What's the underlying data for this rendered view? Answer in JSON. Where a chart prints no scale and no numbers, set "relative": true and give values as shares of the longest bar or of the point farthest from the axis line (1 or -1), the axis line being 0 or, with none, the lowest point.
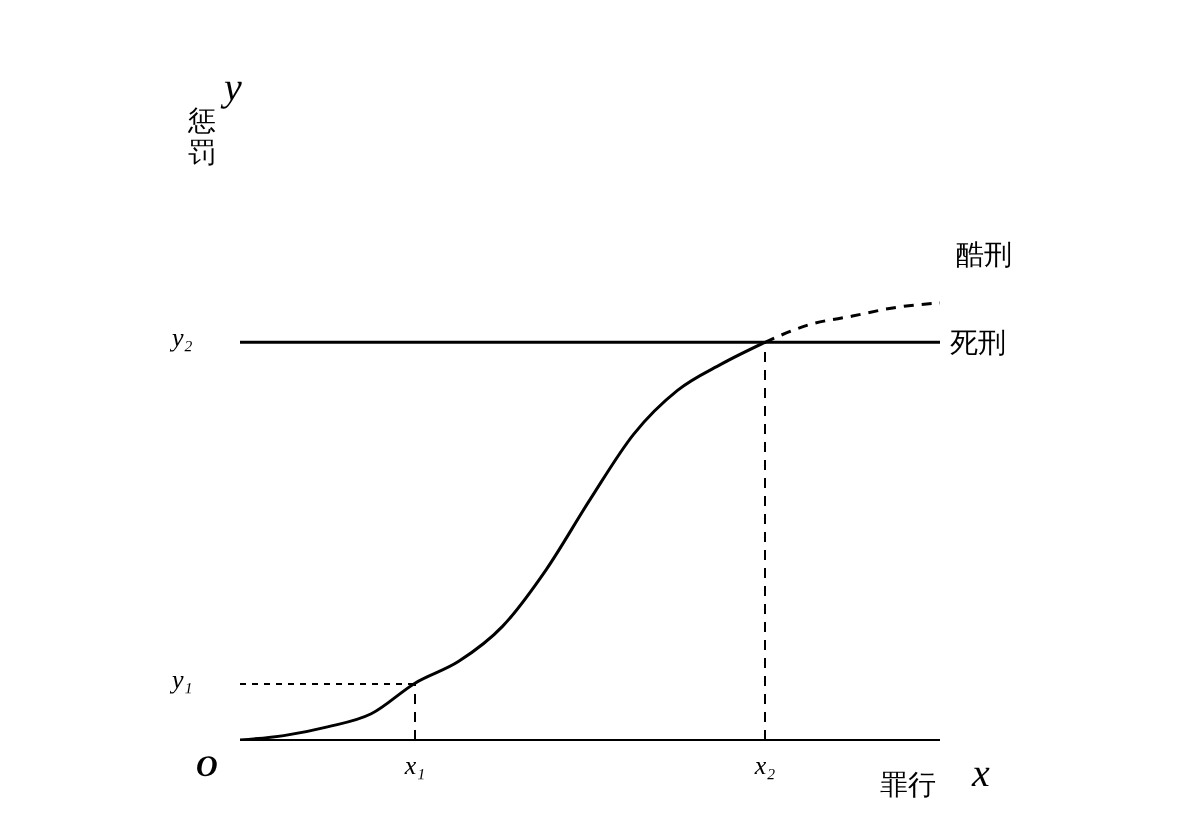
{
  "chart_data": {
    "type": "line",
    "relative": true,
    "xlabel": "罪行",
    "ylabel": "惩罚",
    "categories": [
      null,
      null,
      null,
      null,
      "x₁",
      null,
      null,
      null,
      null,
      null,
      null,
      null,
      "x₂",
      null,
      null,
      null,
      null
    ],
    "series": [
      {
        "color": "#000000",
        "line_style": "solid",
        "values": [
          0,
          0.01,
          0.03,
          0.06,
          0.13,
          0.18,
          0.26,
          0.39,
          0.55,
          0.7,
          0.8,
          0.86,
          0.91,
          null,
          null,
          null,
          null
        ]
      },
      {
        "name": "酷刑",
        "color": "#000000",
        "line_style": "dashed",
        "values": [
          null,
          null,
          null,
          null,
          null,
          null,
          null,
          null,
          null,
          null,
          null,
          null,
          0.91,
          0.95,
          0.97,
          0.99,
          1
        ]
      }
    ],
    "ref_lines": [
      {
        "axis": "y",
        "value": 0.91,
        "label": "死刑",
        "color": "#000000",
        "line_style": "solid"
      },
      {
        "axis": "x",
        "value": "x₁",
        "color": "#000000",
        "line_style": "dashed"
      },
      {
        "axis": "x",
        "value": "x₂",
        "color": "#000000",
        "line_style": "dashed"
      }
    ],
    "annotations": [
      "y",
      "x",
      "O",
      "y₁",
      "y₂"
    ],
    "marker": "none"
  }
}
